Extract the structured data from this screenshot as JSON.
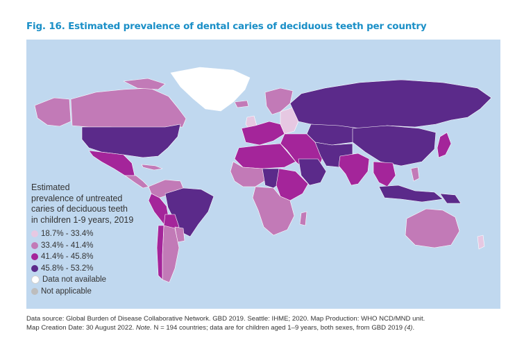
{
  "title": "Fig. 16. Estimated prevalence of dental caries of deciduous teeth per country",
  "legend": {
    "title_lines": [
      "Estimated",
      "prevalence of untreated",
      "caries of  deciduous teeth",
      "in children 1-9 years, 2019"
    ],
    "items": [
      {
        "label": "18.7% - 33.4%",
        "color": "#e6c8e2"
      },
      {
        "label": "33.4% - 41.4%",
        "color": "#c27ab7"
      },
      {
        "label": "41.4% - 45.8%",
        "color": "#a4259a"
      },
      {
        "label": "45.8% - 53.2%",
        "color": "#5b2a8a"
      },
      {
        "label": "Data not available",
        "color": "#ffffff"
      },
      {
        "label": "Not applicable",
        "color": "#bdbdbd"
      }
    ]
  },
  "colors": {
    "ocean": "#c0d8ef",
    "title": "#1a8fc7"
  },
  "footer": {
    "line1": "Data source: Global Burden of Disease Collaborative Network. GBD 2019. Seattle: IHME; 2020.  Map Production: WHO NCD/MND unit.",
    "line2_a": "Map Creation Date: 30 August 2022.  ",
    "line2_note": "Note.",
    "line2_b": " N = 194 countries; data are for children aged 1–9 years, both sexes, from GBD 2019 ",
    "line2_ref": "(4)",
    "line2_end": "."
  }
}
